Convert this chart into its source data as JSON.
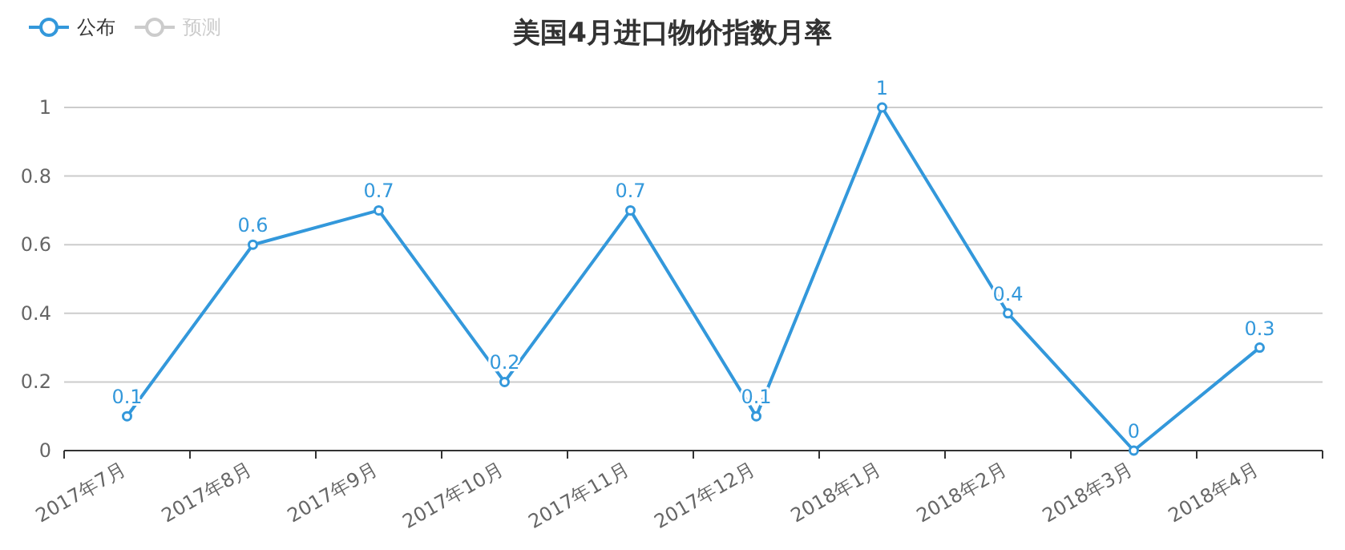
{
  "chart_data": {
    "type": "line",
    "title": "美国4月进口物价指数月率",
    "categories": [
      "2017年7月",
      "2017年8月",
      "2017年9月",
      "2017年10月",
      "2017年11月",
      "2017年12月",
      "2018年1月",
      "2018年2月",
      "2018年3月",
      "2018年4月"
    ],
    "series": [
      {
        "name": "公布",
        "color": "#3398db",
        "values": [
          0.1,
          0.6,
          0.7,
          0.2,
          0.7,
          0.1,
          1,
          0.4,
          0,
          0.3
        ]
      },
      {
        "name": "预测",
        "color": "#cccccc",
        "values": [
          null,
          null,
          null,
          null,
          null,
          null,
          null,
          null,
          null,
          null
        ]
      }
    ],
    "ylim": [
      0,
      1
    ],
    "yticks": [
      0,
      0.2,
      0.4,
      0.6,
      0.8,
      1
    ],
    "grid": "y",
    "legend": "top left",
    "marker": "circle",
    "line_style": "solid",
    "data_labels": true
  }
}
